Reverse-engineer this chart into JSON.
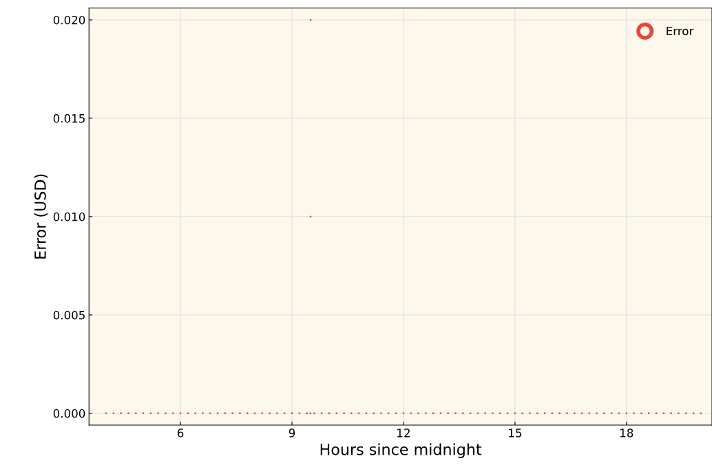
{
  "chart_data": {
    "type": "scatter",
    "xlabel": "Hours since midnight",
    "ylabel": "Error (USD)",
    "x": [
      4.0,
      4.2,
      4.4,
      4.6,
      4.8,
      5.0,
      5.2,
      5.4,
      5.6,
      5.8,
      6.0,
      6.2,
      6.4,
      6.6,
      6.8,
      7.0,
      7.2,
      7.4,
      7.6,
      7.8,
      8.0,
      8.2,
      8.4,
      8.6,
      8.8,
      9.0,
      9.2,
      9.4,
      9.5,
      9.5,
      9.5,
      9.6,
      9.8,
      10.0,
      10.2,
      10.4,
      10.6,
      10.8,
      11.0,
      11.2,
      11.4,
      11.6,
      11.8,
      12.0,
      12.2,
      12.4,
      12.6,
      12.8,
      13.0,
      13.2,
      13.4,
      13.6,
      13.8,
      14.0,
      14.2,
      14.4,
      14.6,
      14.8,
      15.0,
      15.2,
      15.4,
      15.6,
      15.8,
      16.0,
      16.2,
      16.4,
      16.6,
      16.8,
      17.0,
      17.2,
      17.4,
      17.6,
      17.8,
      18.0,
      18.2,
      18.4,
      18.6,
      18.8,
      19.0,
      19.2,
      19.4,
      19.6,
      19.8,
      20.0
    ],
    "series": [
      {
        "name": "Error",
        "color": "#e8453c",
        "values": [
          0,
          0,
          0,
          0,
          0,
          0,
          0,
          0,
          0,
          0,
          0,
          0,
          0,
          0,
          0,
          0,
          0,
          0,
          0,
          0,
          0,
          0,
          0,
          0,
          0,
          0,
          0,
          0,
          0,
          0.01,
          0.02,
          0,
          0,
          0,
          0,
          0,
          0,
          0,
          0,
          0,
          0,
          0,
          0,
          0,
          0,
          0,
          0,
          0,
          0,
          0,
          0,
          0,
          0,
          0,
          0,
          0,
          0,
          0,
          0,
          0,
          0,
          0,
          0,
          0,
          0,
          0,
          0,
          0,
          0,
          0,
          0,
          0,
          0,
          0,
          0,
          0,
          0,
          0,
          0,
          0,
          0,
          0,
          0,
          0
        ]
      }
    ],
    "xlim": [
      3.54,
      20.3
    ],
    "xticks": [
      6,
      9,
      12,
      15,
      18
    ],
    "ylim": [
      -0.0006,
      0.0206
    ],
    "yticks": [
      {
        "value": 0,
        "label": "0.000"
      },
      {
        "value": 0.005,
        "label": "0.005"
      },
      {
        "value": 0.01,
        "label": "0.010"
      },
      {
        "value": 0.015,
        "label": "0.015"
      },
      {
        "value": 0.02,
        "label": "0.020"
      }
    ],
    "grid": true,
    "legend": "top right",
    "marker": "circle"
  }
}
